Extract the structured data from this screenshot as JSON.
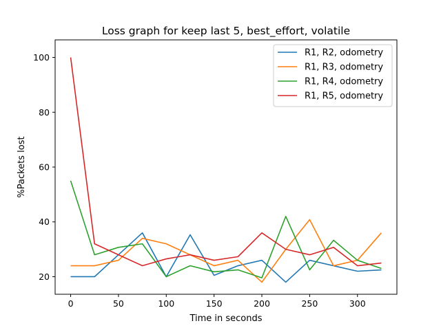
{
  "chart_data": {
    "type": "line",
    "title": "Loss graph for keep last 5, best_effort, volatile",
    "xlabel": "Time in seconds",
    "ylabel": "%Packets lost",
    "x": [
      0,
      25,
      50,
      75,
      100,
      125,
      150,
      175,
      200,
      225,
      250,
      275,
      300,
      325
    ],
    "xlim": [
      -16.25,
      341.25
    ],
    "ylim": [
      13.6,
      106.4
    ],
    "xticks": [
      0,
      50,
      100,
      150,
      200,
      250,
      300
    ],
    "yticks": [
      20,
      40,
      60,
      80,
      100
    ],
    "grid": false,
    "legend_position": "top-right",
    "series": [
      {
        "name": "R1, R2, odometry",
        "color": "#1f77b4",
        "values": [
          20,
          20,
          28,
          36,
          20,
          35.3,
          20.5,
          24,
          26,
          18,
          26,
          24,
          22,
          22.5
        ]
      },
      {
        "name": "R1, R3, odometry",
        "color": "#ff7f0e",
        "values": [
          24,
          24,
          26,
          34,
          32,
          28,
          24,
          26,
          18,
          30,
          40.8,
          24,
          26,
          36
        ]
      },
      {
        "name": "R1, R4, odometry",
        "color": "#2ca02c",
        "values": [
          55,
          28,
          30.7,
          32,
          20,
          24,
          21.8,
          22.5,
          19.6,
          42,
          22.5,
          33.3,
          26,
          23
        ]
      },
      {
        "name": "R1, R5, odometry",
        "color": "#d62728",
        "values": [
          100,
          32,
          28,
          24,
          26.5,
          28,
          26,
          27.3,
          36,
          30,
          28,
          30.7,
          24,
          25
        ]
      }
    ]
  }
}
